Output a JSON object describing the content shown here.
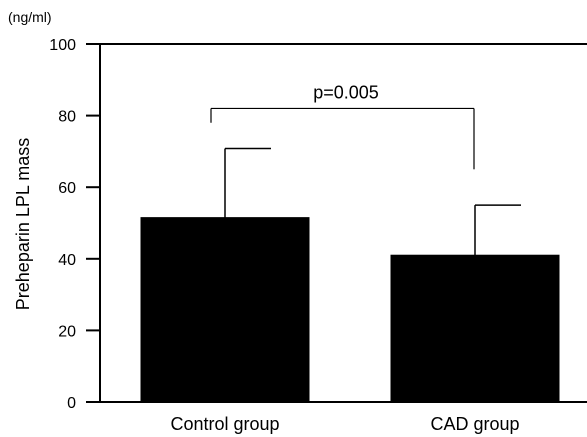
{
  "chart_data": {
    "type": "bar",
    "unit_label": "(ng/ml)",
    "ylabel": "Preheparin LPL mass",
    "xlabel": "",
    "categories": [
      "Control group",
      "CAD group"
    ],
    "values": [
      51.5,
      41.0
    ],
    "error_upper": [
      70.8,
      55.0
    ],
    "ylim": [
      0,
      100
    ],
    "yticks": [
      "0",
      "20",
      "40",
      "60",
      "80",
      "100"
    ],
    "significance": {
      "label": "p=0.005",
      "between": [
        "Control group",
        "CAD group"
      ],
      "level": 82,
      "drop_left": 78,
      "drop_right": 65
    },
    "grid": false,
    "bar_color": "#000000"
  }
}
